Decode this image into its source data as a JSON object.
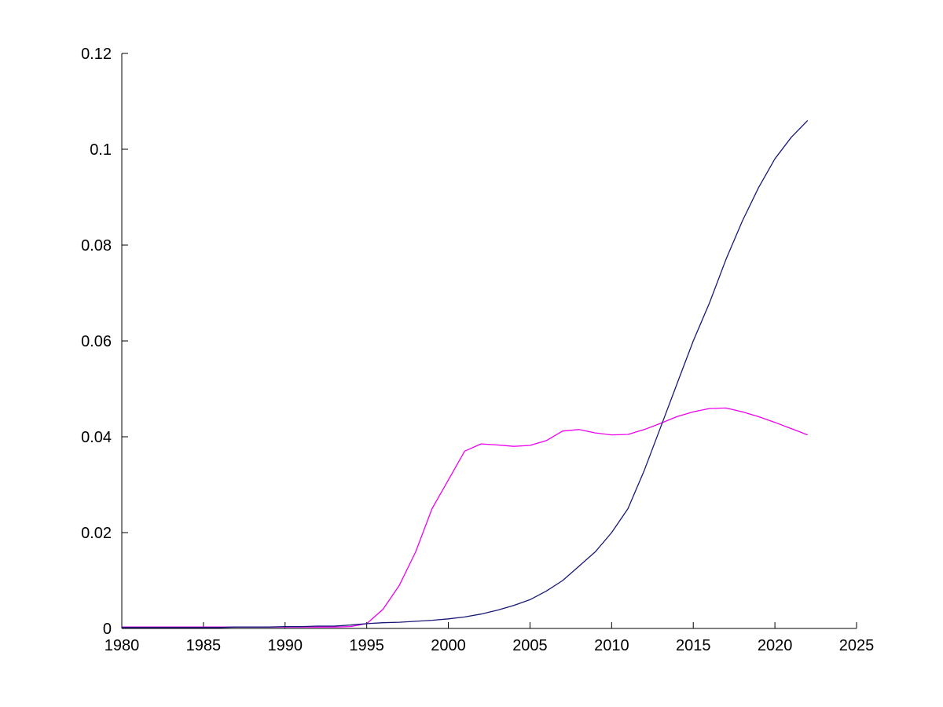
{
  "page": {
    "background_color": "#ffffff",
    "title": ""
  },
  "chart_data": {
    "type": "line",
    "title": "",
    "xlabel": "",
    "ylabel": "",
    "grid": false,
    "legend": null,
    "axis_color": "#000000",
    "xlim": [
      1980,
      2025
    ],
    "ylim": [
      0,
      0.12
    ],
    "x_ticks": [
      1980,
      1985,
      1990,
      1995,
      2000,
      2005,
      2010,
      2015,
      2020,
      2025
    ],
    "x_tick_labels": [
      "1980",
      "1985",
      "1990",
      "1995",
      "2000",
      "2005",
      "2010",
      "2015",
      "2020",
      "2025"
    ],
    "y_ticks": [
      0,
      0.02,
      0.04,
      0.06,
      0.08,
      0.1,
      0.12
    ],
    "y_tick_labels": [
      "0",
      "0.02",
      "0.04",
      "0.06",
      "0.08",
      "0.1",
      "0.12"
    ],
    "x": [
      1980,
      1981,
      1982,
      1983,
      1984,
      1985,
      1986,
      1987,
      1988,
      1989,
      1990,
      1991,
      1992,
      1993,
      1994,
      1995,
      1996,
      1997,
      1998,
      1999,
      2000,
      2001,
      2002,
      2003,
      2004,
      2005,
      2006,
      2007,
      2008,
      2009,
      2010,
      2011,
      2012,
      2013,
      2014,
      2015,
      2016,
      2017,
      2018,
      2019,
      2020,
      2021,
      2022
    ],
    "series": [
      {
        "name": "magenta-line",
        "color": "#EE00EE",
        "values": [
          0.0003,
          0.0003,
          0.0003,
          0.0003,
          0.0003,
          0.0003,
          0.0003,
          0.0003,
          0.0003,
          0.0003,
          0.0003,
          0.0003,
          0.0003,
          0.0003,
          0.0004,
          0.001,
          0.004,
          0.009,
          0.016,
          0.025,
          0.031,
          0.037,
          0.0385,
          0.0383,
          0.038,
          0.0382,
          0.0392,
          0.0412,
          0.0415,
          0.0408,
          0.0404,
          0.0405,
          0.0415,
          0.0428,
          0.0442,
          0.0452,
          0.0459,
          0.046,
          0.0452,
          0.0442,
          0.043,
          0.0417,
          0.0404
        ]
      },
      {
        "name": "navy-line",
        "color": "#181878",
        "values": [
          0.0002,
          0.0002,
          0.0002,
          0.0002,
          0.0002,
          0.0002,
          0.0002,
          0.0003,
          0.0003,
          0.0003,
          0.0004,
          0.0004,
          0.0005,
          0.0005,
          0.0007,
          0.001,
          0.0012,
          0.0013,
          0.0015,
          0.0017,
          0.002,
          0.0024,
          0.003,
          0.0038,
          0.0048,
          0.006,
          0.0078,
          0.01,
          0.013,
          0.016,
          0.02,
          0.025,
          0.033,
          0.042,
          0.051,
          0.06,
          0.068,
          0.077,
          0.085,
          0.092,
          0.098,
          0.1025,
          0.106
        ]
      }
    ]
  }
}
